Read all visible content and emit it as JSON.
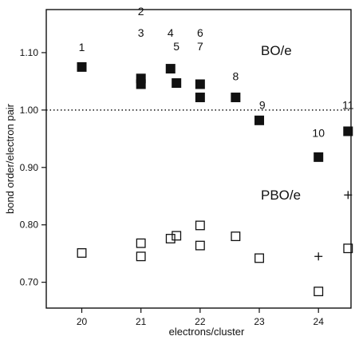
{
  "chart_data": {
    "type": "scatter",
    "xlabel": "electrons/cluster",
    "ylabel": "bond order/electron pair",
    "xlim": [
      19.4,
      24.55
    ],
    "ylim": [
      0.655,
      1.175
    ],
    "x_ticks": [
      20,
      21,
      22,
      23,
      24
    ],
    "y_ticks": [
      0.7,
      0.8,
      0.9,
      1.0,
      1.1
    ],
    "x_tick_labels": [
      "20",
      "21",
      "22",
      "23",
      "24"
    ],
    "y_tick_labels": [
      "0.70",
      "0.80",
      "0.90",
      "1.00",
      "1.10"
    ],
    "reference_line": {
      "y": 1.0,
      "style": "dotted"
    },
    "series_labels": [
      "BO/e",
      "PBO/e"
    ],
    "series": [
      {
        "marker": "filled-square",
        "points": [
          {
            "x": 20.0,
            "y": 1.075
          },
          {
            "x": 21.0,
            "y": 1.055
          },
          {
            "x": 21.0,
            "y": 1.045
          },
          {
            "x": 21.5,
            "y": 1.072
          },
          {
            "x": 21.6,
            "y": 1.047
          },
          {
            "x": 22.0,
            "y": 1.045
          },
          {
            "x": 22.0,
            "y": 1.022
          },
          {
            "x": 22.6,
            "y": 1.022
          },
          {
            "x": 23.0,
            "y": 0.982
          },
          {
            "x": 24.0,
            "y": 0.918
          },
          {
            "x": 24.5,
            "y": 0.963
          }
        ]
      },
      {
        "marker": "open-square",
        "points": [
          {
            "x": 20.0,
            "y": 0.751
          },
          {
            "x": 21.0,
            "y": 0.768
          },
          {
            "x": 21.0,
            "y": 0.745
          },
          {
            "x": 21.5,
            "y": 0.776
          },
          {
            "x": 21.6,
            "y": 0.781
          },
          {
            "x": 22.0,
            "y": 0.799
          },
          {
            "x": 22.0,
            "y": 0.764
          },
          {
            "x": 22.6,
            "y": 0.78
          },
          {
            "x": 23.0,
            "y": 0.742
          },
          {
            "x": 24.0,
            "y": 0.684
          },
          {
            "x": 24.5,
            "y": 0.759
          }
        ]
      },
      {
        "marker": "plus",
        "points": [
          {
            "x": 24.0,
            "y": 0.745
          },
          {
            "x": 24.5,
            "y": 0.852
          }
        ]
      }
    ],
    "annotations": [
      {
        "text": "1",
        "x": 20.0,
        "y": 1.103
      },
      {
        "text": "2",
        "x": 21.0,
        "y": 1.165
      },
      {
        "text": "3",
        "x": 21.0,
        "y": 1.128
      },
      {
        "text": "4",
        "x": 21.5,
        "y": 1.128
      },
      {
        "text": "5",
        "x": 21.6,
        "y": 1.104
      },
      {
        "text": "6",
        "x": 22.0,
        "y": 1.128
      },
      {
        "text": "7",
        "x": 22.0,
        "y": 1.104
      },
      {
        "text": "8",
        "x": 22.6,
        "y": 1.052
      },
      {
        "text": "9",
        "x": 23.05,
        "y": 1.002
      },
      {
        "text": "10",
        "x": 24.0,
        "y": 0.953
      },
      {
        "text": "11",
        "x": 24.5,
        "y": 1.002
      }
    ]
  }
}
